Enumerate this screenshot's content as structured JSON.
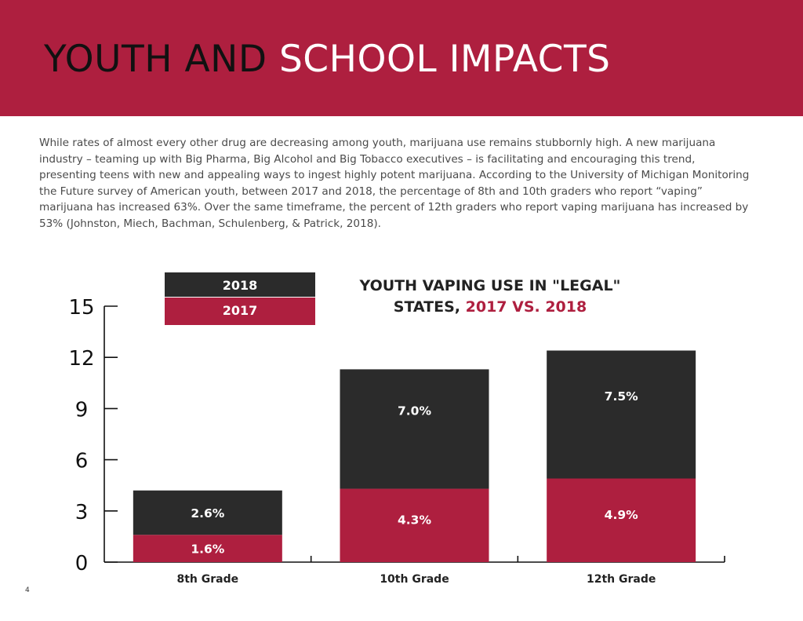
{
  "header": {
    "title_part1": "YOUTH AND ",
    "title_part2": "SCHOOL IMPACTS"
  },
  "intro_text": "While rates of almost every other drug are decreasing among youth, marijuana use remains stubbornly high. A new marijuana industry – teaming up with Big Pharma, Big Alcohol and Big Tobacco executives – is facilitating and encouraging this trend, presenting teens with new and appealing ways to ingest highly potent marijuana. According to the University of Michigan Monitoring the Future survey of American youth, between 2017 and 2018, the percentage of 8th and 10th graders who report “vaping” marijuana has increased 63%. Over the same timeframe, the percent of 12th graders who report vaping marijuana has increased by 53% (Johnston, Miech, Bachman, Schulenberg, & Patrick, 2018).",
  "page_number": "4",
  "colors": {
    "crimson": "#ae1f3f",
    "dark": "#2b2b2b",
    "black": "#111111"
  },
  "chart_data": {
    "type": "bar",
    "stacked": true,
    "title_line1": "YOUTH VAPING USE IN \"LEGAL\"",
    "title_line2_prefix": "STATES, ",
    "title_line2_highlight": "2017 VS. 2018",
    "categories": [
      "8th Grade",
      "10th Grade",
      "12th Grade"
    ],
    "series": [
      {
        "name": "2017",
        "values": [
          1.6,
          4.3,
          4.9
        ],
        "labels": [
          "1.6%",
          "4.3%",
          "4.9%"
        ],
        "color": "#ae1f3f"
      },
      {
        "name": "2018",
        "values": [
          2.6,
          7.0,
          7.5
        ],
        "labels": [
          "2.6%",
          "7.0%",
          "7.5%"
        ],
        "color": "#2b2b2b"
      }
    ],
    "legend": [
      {
        "label": "2018",
        "color": "#2b2b2b"
      },
      {
        "label": "2017",
        "color": "#ae1f3f"
      }
    ],
    "legend_position": "top-left",
    "ylim": [
      0,
      15
    ],
    "yticks": [
      0,
      3,
      6,
      9,
      12,
      15
    ],
    "xlabel": "",
    "ylabel": "",
    "grid": false
  }
}
